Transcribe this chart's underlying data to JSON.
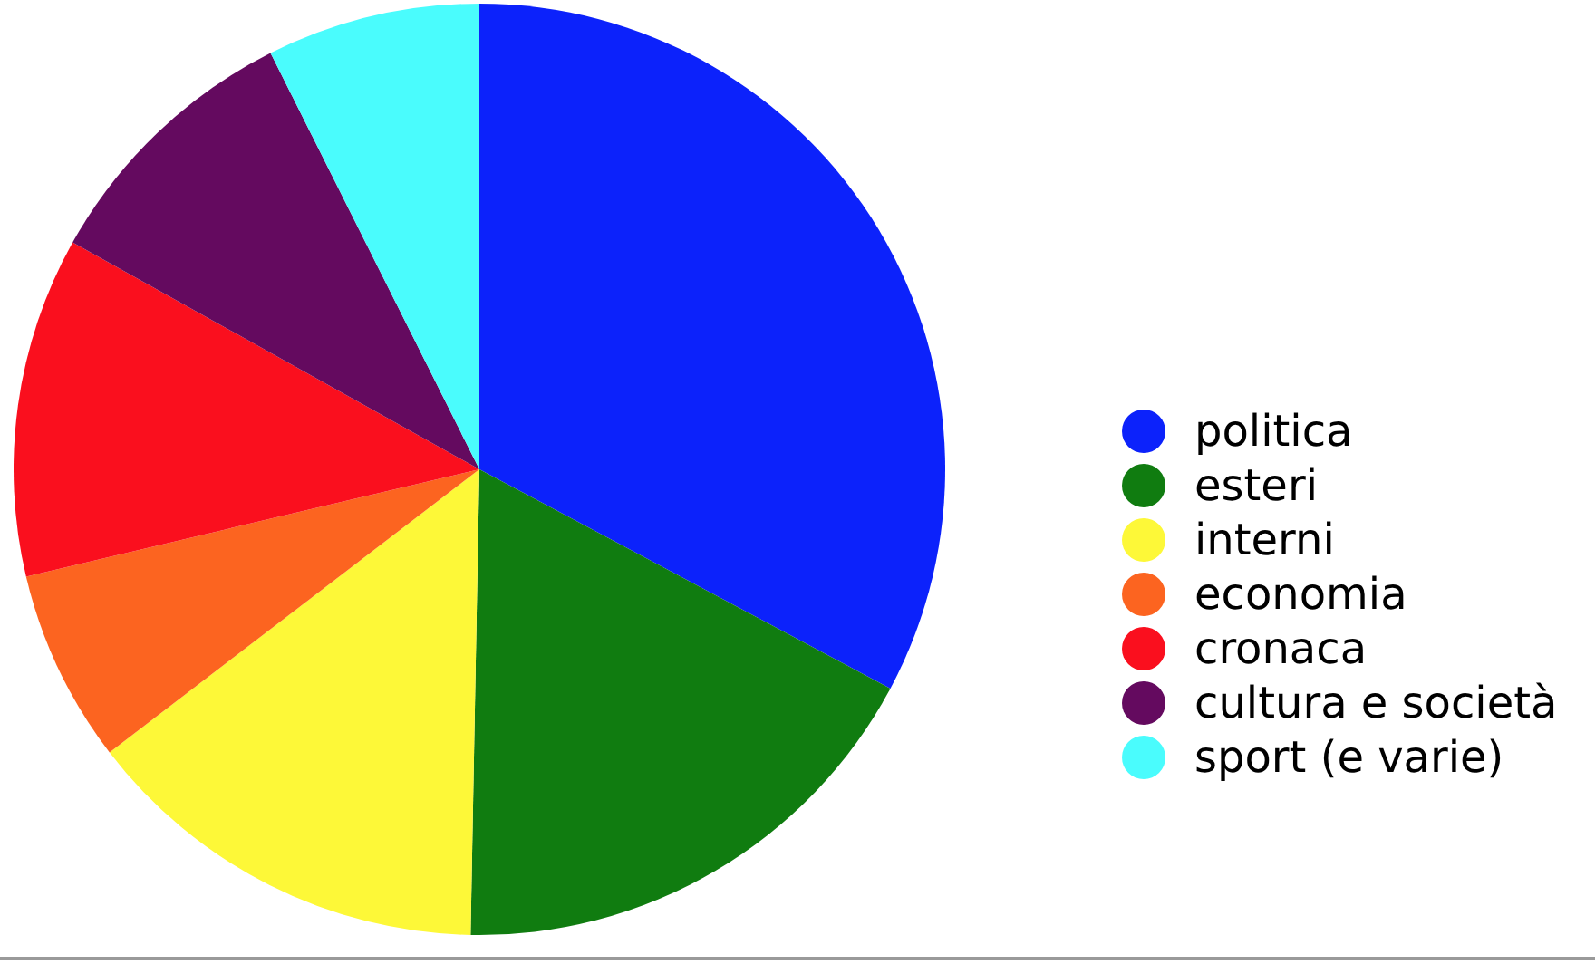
{
  "chart_data": {
    "type": "pie",
    "categories": [
      "politica",
      "esteri",
      "interni",
      "economia",
      "cronaca",
      "cultura e società",
      "sport (e varie)"
    ],
    "values": [
      32.8,
      17.5,
      14.3,
      6.7,
      11.8,
      9.5,
      7.4
    ],
    "colors": [
      "#0c22fb",
      "#107c10",
      "#fdf838",
      "#fc6420",
      "#fa0f1e",
      "#640a5f",
      "#4afcfd"
    ],
    "legend": "right"
  }
}
